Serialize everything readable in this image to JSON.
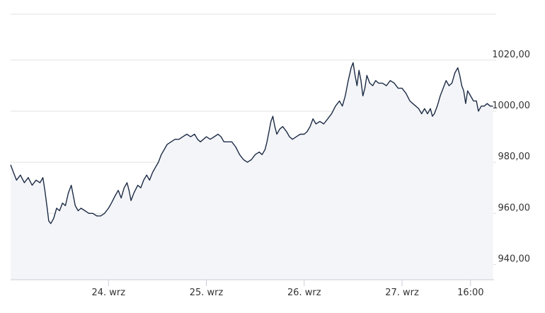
{
  "chart_data": {
    "type": "area",
    "title": "",
    "xlabel": "",
    "ylabel": "",
    "ylim": [
      934,
      1038
    ],
    "y_ticks": [
      940,
      960,
      980,
      1000,
      1020
    ],
    "y_tick_labels": [
      "940,00",
      "960,00",
      "980,00",
      "1000,00",
      "1020,00"
    ],
    "x_ticks": [
      {
        "label": "24. wrz",
        "t": 1.0
      },
      {
        "label": "25. wrz",
        "t": 2.0
      },
      {
        "label": "26. wrz",
        "t": 3.0
      },
      {
        "label": "27. wrz",
        "t": 4.0
      },
      {
        "label": "16:00",
        "t": 4.7
      }
    ],
    "xlim": [
      0.0,
      4.94
    ],
    "grid": true,
    "colors": {
      "line": "#1c2b45",
      "fill": "#f4f5f8",
      "grid": "#e0e0e0",
      "axis": "#c8cdd6",
      "text": "#333333"
    },
    "series": [
      {
        "points": [
          [
            0.0,
            979
          ],
          [
            0.03,
            976
          ],
          [
            0.06,
            973
          ],
          [
            0.1,
            975
          ],
          [
            0.14,
            972
          ],
          [
            0.18,
            974
          ],
          [
            0.22,
            971
          ],
          [
            0.26,
            973
          ],
          [
            0.3,
            972
          ],
          [
            0.33,
            974
          ],
          [
            0.35,
            969
          ],
          [
            0.37,
            963
          ],
          [
            0.39,
            957
          ],
          [
            0.41,
            956
          ],
          [
            0.44,
            958
          ],
          [
            0.47,
            962
          ],
          [
            0.5,
            961
          ],
          [
            0.53,
            964
          ],
          [
            0.56,
            963
          ],
          [
            0.59,
            968
          ],
          [
            0.62,
            971
          ],
          [
            0.64,
            967
          ],
          [
            0.66,
            963
          ],
          [
            0.69,
            961
          ],
          [
            0.72,
            962
          ],
          [
            0.76,
            961
          ],
          [
            0.8,
            960
          ],
          [
            0.84,
            960
          ],
          [
            0.88,
            959
          ],
          [
            0.92,
            959
          ],
          [
            0.96,
            960
          ],
          [
            1.0,
            962
          ],
          [
            1.03,
            964
          ],
          [
            1.07,
            967
          ],
          [
            1.1,
            969
          ],
          [
            1.13,
            966
          ],
          [
            1.16,
            970
          ],
          [
            1.19,
            972
          ],
          [
            1.21,
            969
          ],
          [
            1.23,
            965
          ],
          [
            1.26,
            968
          ],
          [
            1.3,
            971
          ],
          [
            1.33,
            970
          ],
          [
            1.36,
            973
          ],
          [
            1.39,
            975
          ],
          [
            1.42,
            973
          ],
          [
            1.45,
            976
          ],
          [
            1.48,
            978
          ],
          [
            1.51,
            980
          ],
          [
            1.54,
            983
          ],
          [
            1.57,
            985
          ],
          [
            1.6,
            987
          ],
          [
            1.64,
            988
          ],
          [
            1.68,
            989
          ],
          [
            1.72,
            989
          ],
          [
            1.76,
            990
          ],
          [
            1.8,
            991
          ],
          [
            1.84,
            990
          ],
          [
            1.88,
            991
          ],
          [
            1.91,
            989
          ],
          [
            1.94,
            988
          ],
          [
            1.97,
            989
          ],
          [
            2.0,
            990
          ],
          [
            2.04,
            989
          ],
          [
            2.08,
            990
          ],
          [
            2.12,
            991
          ],
          [
            2.15,
            990
          ],
          [
            2.18,
            988
          ],
          [
            2.22,
            988
          ],
          [
            2.26,
            988
          ],
          [
            2.3,
            986
          ],
          [
            2.34,
            983
          ],
          [
            2.38,
            981
          ],
          [
            2.42,
            980
          ],
          [
            2.46,
            981
          ],
          [
            2.5,
            983
          ],
          [
            2.54,
            984
          ],
          [
            2.57,
            983
          ],
          [
            2.6,
            985
          ],
          [
            2.62,
            988
          ],
          [
            2.64,
            992
          ],
          [
            2.66,
            996
          ],
          [
            2.68,
            998
          ],
          [
            2.7,
            994
          ],
          [
            2.72,
            991
          ],
          [
            2.75,
            993
          ],
          [
            2.78,
            994
          ],
          [
            2.82,
            992
          ],
          [
            2.85,
            990
          ],
          [
            2.88,
            989
          ],
          [
            2.92,
            990
          ],
          [
            2.96,
            991
          ],
          [
            3.0,
            991
          ],
          [
            3.03,
            992
          ],
          [
            3.06,
            994
          ],
          [
            3.09,
            997
          ],
          [
            3.12,
            995
          ],
          [
            3.16,
            996
          ],
          [
            3.2,
            995
          ],
          [
            3.24,
            997
          ],
          [
            3.28,
            999
          ],
          [
            3.32,
            1002
          ],
          [
            3.36,
            1004
          ],
          [
            3.39,
            1002
          ],
          [
            3.42,
            1006
          ],
          [
            3.45,
            1012
          ],
          [
            3.48,
            1017
          ],
          [
            3.5,
            1019
          ],
          [
            3.52,
            1014
          ],
          [
            3.54,
            1010
          ],
          [
            3.56,
            1016
          ],
          [
            3.58,
            1012
          ],
          [
            3.6,
            1006
          ],
          [
            3.62,
            1009
          ],
          [
            3.64,
            1014
          ],
          [
            3.67,
            1011
          ],
          [
            3.7,
            1010
          ],
          [
            3.73,
            1012
          ],
          [
            3.76,
            1011
          ],
          [
            3.8,
            1011
          ],
          [
            3.84,
            1010
          ],
          [
            3.88,
            1012
          ],
          [
            3.92,
            1011
          ],
          [
            3.96,
            1009
          ],
          [
            4.0,
            1009
          ],
          [
            4.04,
            1007
          ],
          [
            4.08,
            1004
          ],
          [
            4.11,
            1003
          ],
          [
            4.14,
            1002
          ],
          [
            4.17,
            1001
          ],
          [
            4.2,
            999
          ],
          [
            4.23,
            1001
          ],
          [
            4.26,
            999
          ],
          [
            4.29,
            1001
          ],
          [
            4.31,
            998
          ],
          [
            4.33,
            999
          ],
          [
            4.36,
            1002
          ],
          [
            4.39,
            1006
          ],
          [
            4.42,
            1009
          ],
          [
            4.45,
            1012
          ],
          [
            4.48,
            1010
          ],
          [
            4.51,
            1011
          ],
          [
            4.54,
            1015
          ],
          [
            4.57,
            1017
          ],
          [
            4.59,
            1014
          ],
          [
            4.61,
            1010
          ],
          [
            4.63,
            1008
          ],
          [
            4.65,
            1003
          ],
          [
            4.67,
            1008
          ],
          [
            4.7,
            1006
          ],
          [
            4.73,
            1004
          ],
          [
            4.76,
            1004
          ],
          [
            4.78,
            1000
          ],
          [
            4.81,
            1002
          ],
          [
            4.84,
            1002
          ],
          [
            4.87,
            1003
          ],
          [
            4.9,
            1002
          ],
          [
            4.93,
            1002
          ]
        ]
      }
    ]
  }
}
